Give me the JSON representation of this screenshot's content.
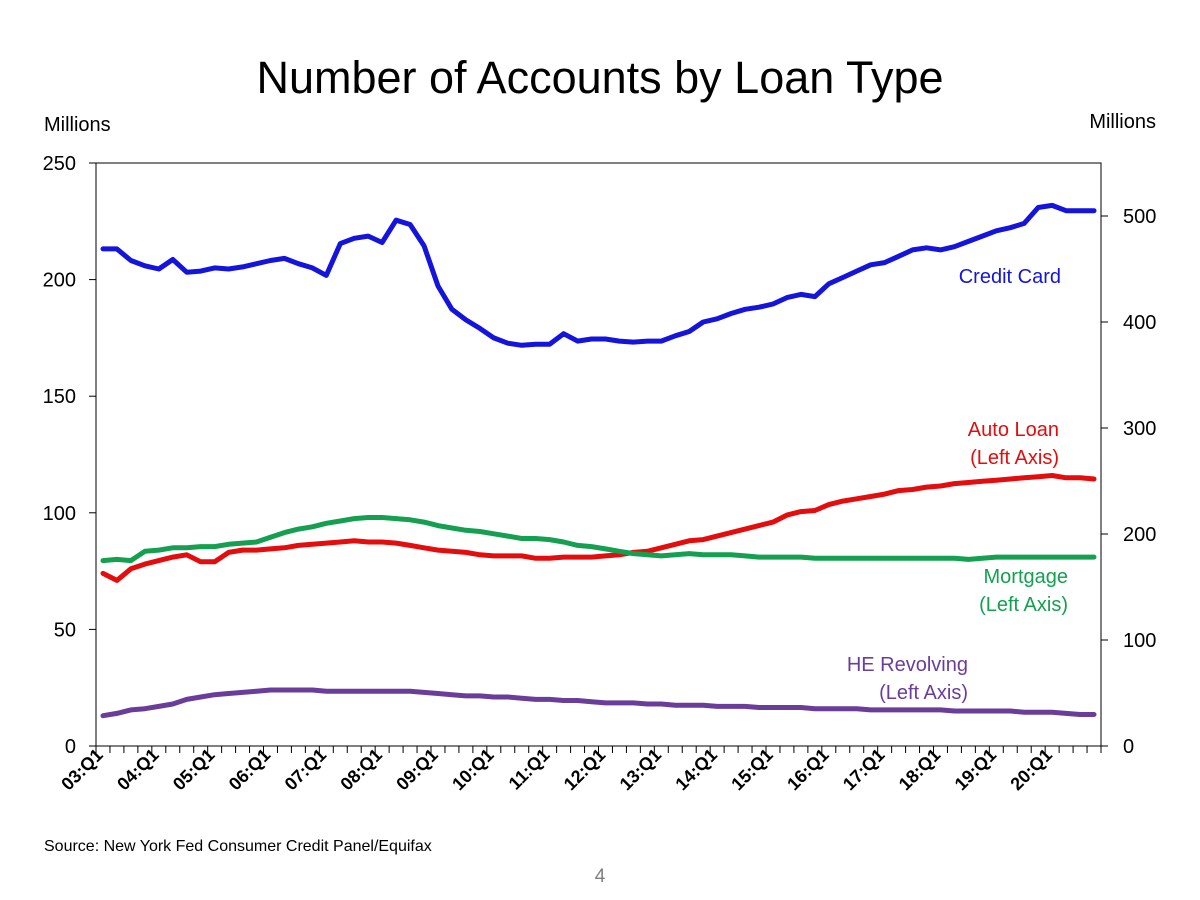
{
  "page": {
    "title": "Number of Accounts by Loan Type",
    "left_unit": "Millions",
    "right_unit": "Millions",
    "source": "Source: New York Fed Consumer Credit Panel/Equifax",
    "page_number": "4"
  },
  "chart_data": {
    "type": "line",
    "title": "Number of Accounts by Loan Type",
    "x_tick_labels": [
      "03:Q1",
      "04:Q1",
      "05:Q1",
      "06:Q1",
      "07:Q1",
      "08:Q1",
      "09:Q1",
      "10:Q1",
      "11:Q1",
      "12:Q1",
      "13:Q1",
      "14:Q1",
      "15:Q1",
      "16:Q1",
      "17:Q1",
      "18:Q1",
      "19:Q1",
      "20:Q1"
    ],
    "x_count": 72,
    "y_left": {
      "label": "Millions",
      "ylim": [
        0,
        250
      ],
      "ticks": [
        0,
        50,
        100,
        150,
        200,
        250
      ]
    },
    "y_right": {
      "label": "Millions",
      "ylim": [
        0,
        550
      ],
      "ticks": [
        0,
        100,
        200,
        300,
        400,
        500
      ]
    },
    "grid": false,
    "series": [
      {
        "name": "Credit Card",
        "label_lines": [
          "Credit Card"
        ],
        "axis": "right",
        "color": "#1414dc",
        "values": [
          469,
          469,
          458,
          453,
          450,
          459,
          447,
          448,
          451,
          450,
          452,
          455,
          458,
          460,
          455,
          451,
          444,
          474,
          479,
          481,
          475,
          496,
          492,
          472,
          434,
          412,
          402,
          394,
          385,
          380,
          378,
          379,
          379,
          389,
          382,
          384,
          384,
          382,
          381,
          382,
          382,
          387,
          391,
          400,
          403,
          408,
          412,
          414,
          417,
          423,
          426,
          424,
          436,
          442,
          448,
          454,
          456,
          462,
          468,
          470,
          468,
          471,
          476,
          481,
          486,
          489,
          493,
          508,
          510,
          505,
          505,
          505
        ]
      },
      {
        "name": "Auto Loan",
        "label_lines": [
          "Auto Loan",
          "(Left Axis)"
        ],
        "axis": "left",
        "color": "#e40c0c",
        "values": [
          74,
          71,
          76,
          78,
          79.5,
          81,
          82,
          79,
          79,
          83,
          84,
          84,
          84.5,
          85,
          86,
          86.5,
          87,
          87.5,
          88,
          87.5,
          87.5,
          87,
          86,
          85,
          84,
          83.5,
          83,
          82,
          81.5,
          81.5,
          81.5,
          80.5,
          80.5,
          81,
          81,
          81,
          81.5,
          82,
          83,
          83.5,
          85,
          86.5,
          88,
          88.5,
          90,
          91.5,
          93,
          94.5,
          96,
          99,
          100.5,
          101,
          103.5,
          105,
          106,
          107,
          108,
          109.5,
          110,
          111,
          111.5,
          112.5,
          113,
          113.5,
          114,
          114.5,
          115,
          115.5,
          116,
          115,
          115,
          114.5
        ]
      },
      {
        "name": "Mortgage",
        "label_lines": [
          "Mortgage",
          "(Left Axis)"
        ],
        "axis": "left",
        "color": "#14a050",
        "values": [
          79.5,
          80,
          79.5,
          83.5,
          84,
          85,
          85,
          85.5,
          85.5,
          86.5,
          87,
          87.5,
          89.5,
          91.5,
          93,
          94,
          95.5,
          96.5,
          97.5,
          98,
          98,
          97.5,
          97,
          96,
          94.5,
          93.5,
          92.5,
          92,
          91,
          90,
          89,
          89,
          88.5,
          87.5,
          86,
          85.5,
          84.5,
          83.5,
          82.5,
          82,
          81.5,
          82,
          82.5,
          82,
          82,
          82,
          81.5,
          81,
          81,
          81,
          81,
          80.5,
          80.5,
          80.5,
          80.5,
          80.5,
          80.5,
          80.5,
          80.5,
          80.5,
          80.5,
          80.5,
          80,
          80.5,
          81,
          81,
          81,
          81,
          81,
          81,
          81,
          81
        ]
      },
      {
        "name": "HE Revolving",
        "label_lines": [
          "HE Revolving",
          "(Left Axis)"
        ],
        "axis": "left",
        "color": "#6a3d9a",
        "values": [
          13,
          14,
          15.5,
          16,
          17,
          18,
          20,
          21,
          22,
          22.5,
          23,
          23.5,
          24,
          24,
          24,
          24,
          23.5,
          23.5,
          23.5,
          23.5,
          23.5,
          23.5,
          23.5,
          23,
          22.5,
          22,
          21.5,
          21.5,
          21,
          21,
          20.5,
          20,
          20,
          19.5,
          19.5,
          19,
          18.5,
          18.5,
          18.5,
          18,
          18,
          17.5,
          17.5,
          17.5,
          17,
          17,
          17,
          16.5,
          16.5,
          16.5,
          16.5,
          16,
          16,
          16,
          16,
          15.5,
          15.5,
          15.5,
          15.5,
          15.5,
          15.5,
          15,
          15,
          15,
          15,
          15,
          14.5,
          14.5,
          14.5,
          14,
          13.5,
          13.5
        ]
      }
    ]
  }
}
